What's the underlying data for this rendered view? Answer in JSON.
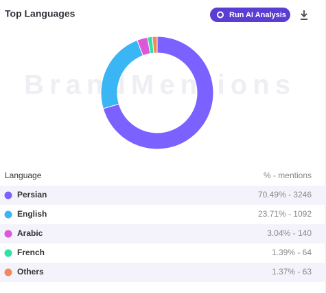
{
  "header": {
    "title": "Top Languages",
    "button": "Run AI Analysis"
  },
  "watermark": "BrandMentions",
  "chart_data": {
    "type": "donut",
    "values": [
      70.49,
      23.71,
      3.04,
      1.39,
      1.37
    ],
    "colors": [
      "#7b61ff",
      "#3bb6f5",
      "#e056d8",
      "#2fe0a8",
      "#f5875c"
    ]
  },
  "table": {
    "columns": [
      "Language",
      "% - mentions"
    ],
    "rows": [
      [
        "Persian",
        "70.49% - 3246"
      ],
      [
        "English",
        "23.71% - 1092"
      ],
      [
        "Arabic",
        "3.04% - 140"
      ],
      [
        "French",
        "1.39% - 64"
      ],
      [
        "Others",
        "1.37% - 63"
      ]
    ]
  }
}
